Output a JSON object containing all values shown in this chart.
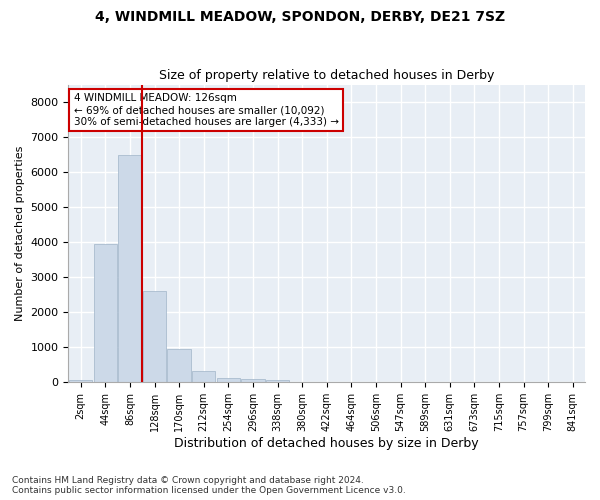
{
  "title1": "4, WINDMILL MEADOW, SPONDON, DERBY, DE21 7SZ",
  "title2": "Size of property relative to detached houses in Derby",
  "xlabel": "Distribution of detached houses by size in Derby",
  "ylabel": "Number of detached properties",
  "bar_color": "#ccd9e8",
  "bar_edgecolor": "#a0b4c8",
  "background_color": "#e8eef5",
  "grid_color": "#ffffff",
  "vline_color": "#cc0000",
  "annotation_text": "4 WINDMILL MEADOW: 126sqm\n← 69% of detached houses are smaller (10,092)\n30% of semi-detached houses are larger (4,333) →",
  "annotation_box_color": "#ffffff",
  "annotation_box_edgecolor": "#cc0000",
  "categories": [
    "2sqm",
    "44sqm",
    "86sqm",
    "128sqm",
    "170sqm",
    "212sqm",
    "254sqm",
    "296sqm",
    "338sqm",
    "380sqm",
    "422sqm",
    "464sqm",
    "506sqm",
    "547sqm",
    "589sqm",
    "631sqm",
    "673sqm",
    "715sqm",
    "757sqm",
    "799sqm",
    "841sqm"
  ],
  "values": [
    50,
    3950,
    6500,
    2600,
    950,
    320,
    120,
    100,
    60,
    0,
    0,
    0,
    0,
    0,
    0,
    0,
    0,
    0,
    0,
    0,
    0
  ],
  "ylim": [
    0,
    8500
  ],
  "yticks": [
    0,
    1000,
    2000,
    3000,
    4000,
    5000,
    6000,
    7000,
    8000
  ],
  "footnote": "Contains HM Land Registry data © Crown copyright and database right 2024.\nContains public sector information licensed under the Open Government Licence v3.0.",
  "vline_index": 2.5
}
